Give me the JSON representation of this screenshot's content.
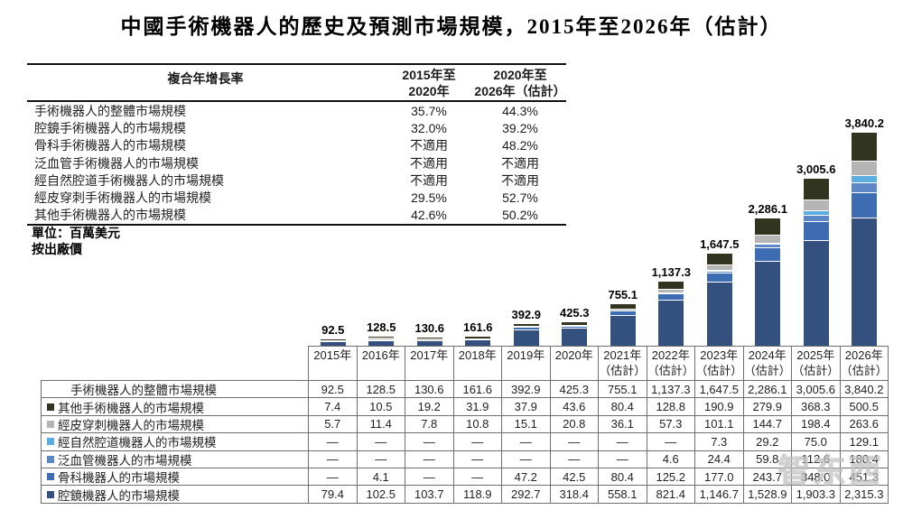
{
  "title": "中國手術機器人的歷史及預測市場規模，2015年至2026年（估計）",
  "cagr_table": {
    "header": {
      "label": "複合年增長率",
      "col1_line1": "2015年至",
      "col1_line2": "2020年",
      "col2_line1": "2020年至",
      "col2_line2": "2026年（估計）"
    },
    "rows": [
      {
        "label": "手術機器人的整體市場規模",
        "v1": "35.7%",
        "v2": "44.3%"
      },
      {
        "label": "腔鏡手術機器人的市場規模",
        "v1": "32.0%",
        "v2": "39.2%"
      },
      {
        "label": "骨科手術機器人的市場規模",
        "v1": "不適用",
        "v2": "48.2%"
      },
      {
        "label": "泛血管手術機器人的市場規模",
        "v1": "不適用",
        "v2": "不適用"
      },
      {
        "label": "經自然腔道手術機器人的市場規模",
        "v1": "不適用",
        "v2": "不適用"
      },
      {
        "label": "經皮穿刺手術機器人的市場規模",
        "v1": "29.5%",
        "v2": "52.7%"
      },
      {
        "label": "其他手術機器人的市場規模",
        "v1": "42.6%",
        "v2": "50.2%"
      }
    ]
  },
  "unit_note_line1": "單位：百萬美元",
  "unit_note_line2": "按出廠價",
  "chart_data": {
    "type": "bar",
    "stacked": true,
    "title": "中國手術機器人的歷史及預測市場規模，2015年至2026年（估計）",
    "unit": "百萬美元（按出廠價）",
    "ylim": [
      0,
      3840.2
    ],
    "legend_position": "bottom-table",
    "categories": [
      "2015年",
      "2016年",
      "2017年",
      "2018年",
      "2019年",
      "2020年",
      "2021年（估計）",
      "2022年（估計）",
      "2023年（估計）",
      "2024年（估計）",
      "2025年（估計）",
      "2026年（估計）"
    ],
    "x_axis_lines": [
      {
        "l1": "2015年",
        "l2": ""
      },
      {
        "l1": "2016年",
        "l2": ""
      },
      {
        "l1": "2017年",
        "l2": ""
      },
      {
        "l1": "2018年",
        "l2": ""
      },
      {
        "l1": "2019年",
        "l2": ""
      },
      {
        "l1": "2020年",
        "l2": ""
      },
      {
        "l1": "2021年",
        "l2": "（估計）"
      },
      {
        "l1": "2022年",
        "l2": "（估計）"
      },
      {
        "l1": "2023年",
        "l2": "（估計）"
      },
      {
        "l1": "2024年",
        "l2": "（估計）"
      },
      {
        "l1": "2025年",
        "l2": "（估計）"
      },
      {
        "l1": "2026年",
        "l2": "（估計）"
      }
    ],
    "totals": [
      92.5,
      128.5,
      130.6,
      161.6,
      392.9,
      425.3,
      755.1,
      1137.3,
      1647.5,
      2286.1,
      3005.6,
      3840.2
    ],
    "total_labels": [
      "92.5",
      "128.5",
      "130.6",
      "161.6",
      "392.9",
      "425.3",
      "755.1",
      "1,137.3",
      "1,647.5",
      "2,286.1",
      "3,005.6",
      "3,840.2"
    ],
    "series": [
      {
        "key": "laparoscopic",
        "name": "腔鏡機器人的市場規模",
        "color": "#34507E",
        "values": [
          79.4,
          102.5,
          103.7,
          118.9,
          292.7,
          318.4,
          558.1,
          821.4,
          1146.7,
          1528.9,
          1903.3,
          2315.3
        ]
      },
      {
        "key": "orthopedic",
        "name": "骨科機器人的市場規模",
        "color": "#3E6CB2",
        "values": [
          0,
          4.1,
          0,
          0,
          47.2,
          42.5,
          80.4,
          125.2,
          177.0,
          243.7,
          348.0,
          451.3
        ]
      },
      {
        "key": "panvascular",
        "name": "泛血管機器人的市場規模",
        "color": "#5E88C5",
        "values": [
          0,
          0,
          0,
          0,
          0,
          0,
          0,
          4.6,
          24.4,
          59.8,
          112.6,
          180.4
        ]
      },
      {
        "key": "natural-orifice",
        "name": "經自然腔道機器人的市場規模",
        "color": "#5BAEDD",
        "values": [
          0,
          0,
          0,
          0,
          0,
          0,
          0,
          0,
          7.3,
          29.2,
          75.0,
          129.1
        ]
      },
      {
        "key": "percutaneous",
        "name": "經皮穿刺機器人的市場規模",
        "color": "#B5B5B5",
        "values": [
          5.7,
          11.4,
          7.8,
          10.8,
          15.1,
          20.8,
          36.1,
          57.3,
          101.1,
          144.7,
          198.4,
          263.6
        ]
      },
      {
        "key": "other",
        "name": "其他手術機器人的市場規模",
        "color": "#31341F",
        "values": [
          7.4,
          10.5,
          19.2,
          31.9,
          37.9,
          43.6,
          80.4,
          128.8,
          190.9,
          279.9,
          368.3,
          500.5
        ]
      }
    ]
  },
  "bottom_table": {
    "rows": [
      {
        "label": "手術機器人的整體市場規模",
        "color": null,
        "values": [
          "92.5",
          "128.5",
          "130.6",
          "161.6",
          "392.9",
          "425.3",
          "755.1",
          "1,137.3",
          "1,647.5",
          "2,286.1",
          "3,005.6",
          "3,840.2"
        ]
      },
      {
        "label": "其他手術機器人的市場規模",
        "color": "#31341F",
        "values": [
          "7.4",
          "10.5",
          "19.2",
          "31.9",
          "37.9",
          "43.6",
          "80.4",
          "128.8",
          "190.9",
          "279.9",
          "368.3",
          "500.5"
        ]
      },
      {
        "label": "經皮穿刺機器人的市場規模",
        "color": "#B5B5B5",
        "values": [
          "5.7",
          "11.4",
          "7.8",
          "10.8",
          "15.1",
          "20.8",
          "36.1",
          "57.3",
          "101.1",
          "144.7",
          "198.4",
          "263.6"
        ]
      },
      {
        "label": "經自然腔道機器人的市場規模",
        "color": "#5BAEDD",
        "values": [
          "—",
          "—",
          "—",
          "—",
          "—",
          "—",
          "—",
          "—",
          "7.3",
          "29.2",
          "75.0",
          "129.1"
        ]
      },
      {
        "label": "泛血管機器人的市場規模",
        "color": "#5E88C5",
        "values": [
          "—",
          "—",
          "—",
          "—",
          "—",
          "—",
          "—",
          "4.6",
          "24.4",
          "59.8",
          "112.6",
          "180.4"
        ]
      },
      {
        "label": "骨科機器人的市場規模",
        "color": "#3E6CB2",
        "values": [
          "—",
          "4.1",
          "—",
          "—",
          "47.2",
          "42.5",
          "80.4",
          "125.2",
          "177.0",
          "243.7",
          "348.0",
          "451.3"
        ]
      },
      {
        "label": "腔鏡機器人的市場規模",
        "color": "#34507E",
        "values": [
          "79.4",
          "102.5",
          "103.7",
          "118.9",
          "292.7",
          "318.4",
          "558.1",
          "821.4",
          "1,146.7",
          "1,528.9",
          "1,903.3",
          "2,315.3"
        ]
      }
    ]
  },
  "watermark": {
    "text": "智东西"
  }
}
